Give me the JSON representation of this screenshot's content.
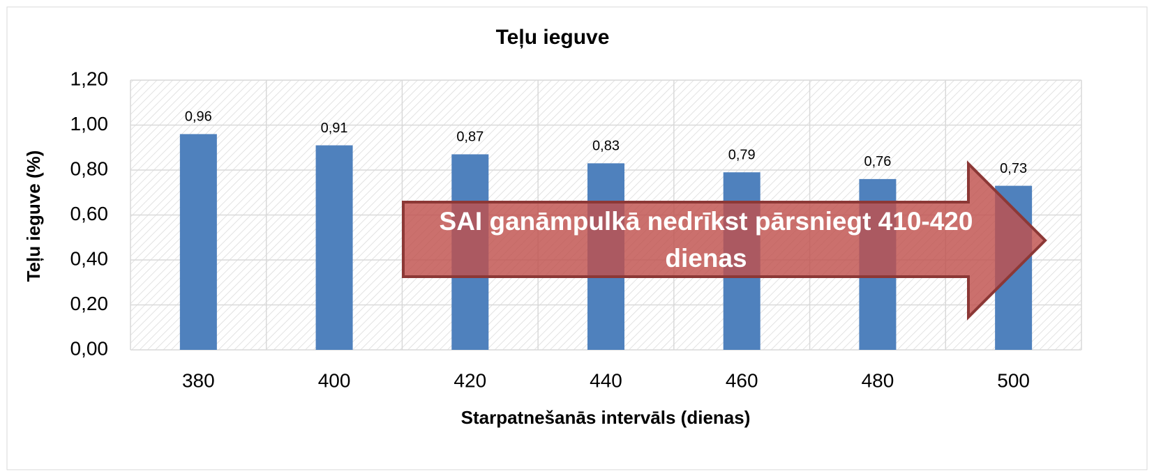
{
  "chart_data": {
    "type": "bar",
    "title": "Teļu ieguve",
    "x_label": "Starpatnešanās intervāls (dienas)",
    "y_label": "Teļu ieguve (%)",
    "categories": [
      "380",
      "400",
      "420",
      "440",
      "460",
      "480",
      "500"
    ],
    "values": [
      0.96,
      0.91,
      0.87,
      0.83,
      0.79,
      0.76,
      0.73
    ],
    "value_labels": [
      "0,96",
      "0,91",
      "0,87",
      "0,83",
      "0,79",
      "0,76",
      "0,73"
    ],
    "color": "#4f81bd",
    "ylim": [
      0,
      1.2
    ],
    "yticks": [
      {
        "value": 0,
        "label": "0,00"
      },
      {
        "value": 0.2,
        "label": "0,20"
      },
      {
        "value": 0.4,
        "label": "0,40"
      },
      {
        "value": 0.6,
        "label": "0,60"
      },
      {
        "value": 0.8,
        "label": "0,80"
      },
      {
        "value": 1.0,
        "label": "1,00"
      },
      {
        "value": 1.2,
        "label": "1,20"
      }
    ],
    "grid": true,
    "annotation": "SAI ganāmpulkā nedrīkst pārsniegt 410-420 dienas"
  }
}
